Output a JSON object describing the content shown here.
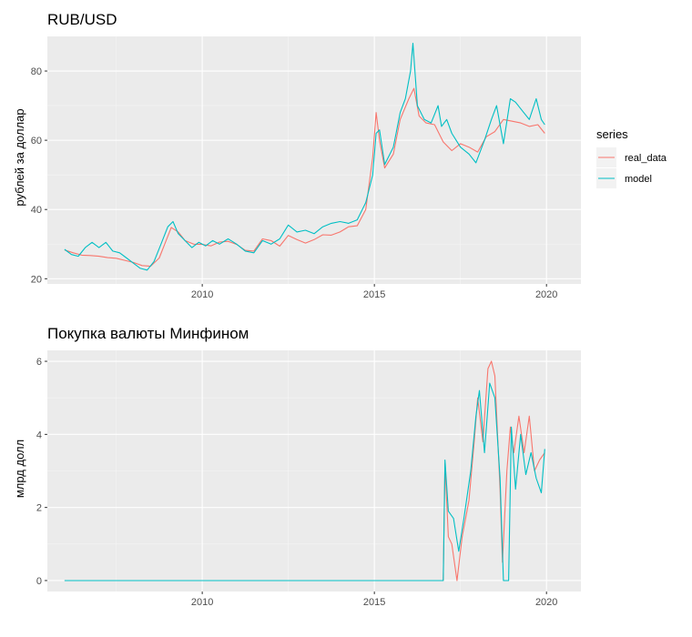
{
  "chart_data": [
    {
      "type": "line",
      "title": "RUB/USD",
      "xlabel": "",
      "ylabel": "рублей за доллар",
      "xlim": [
        2005.5,
        2021.0
      ],
      "ylim": [
        18.5,
        90
      ],
      "x_ticks": [
        2010,
        2015,
        2020
      ],
      "y_ticks": [
        20,
        40,
        60,
        80
      ],
      "grid": true,
      "series": [
        {
          "name": "real_data",
          "color": "#F8766D",
          "points": [
            [
              2006.0,
              28.3
            ],
            [
              2006.25,
              27.5
            ],
            [
              2006.5,
              26.8
            ],
            [
              2006.75,
              26.7
            ],
            [
              2007.0,
              26.5
            ],
            [
              2007.25,
              26.1
            ],
            [
              2007.5,
              25.9
            ],
            [
              2007.75,
              25.3
            ],
            [
              2008.0,
              24.7
            ],
            [
              2008.25,
              23.8
            ],
            [
              2008.5,
              23.6
            ],
            [
              2008.75,
              26.0
            ],
            [
              2008.95,
              31.0
            ],
            [
              2009.1,
              34.8
            ],
            [
              2009.3,
              33.5
            ],
            [
              2009.5,
              31.0
            ],
            [
              2009.75,
              30.0
            ],
            [
              2010.0,
              29.9
            ],
            [
              2010.25,
              29.5
            ],
            [
              2010.5,
              30.6
            ],
            [
              2010.75,
              30.8
            ],
            [
              2011.0,
              29.9
            ],
            [
              2011.25,
              28.2
            ],
            [
              2011.5,
              28.0
            ],
            [
              2011.75,
              31.5
            ],
            [
              2012.0,
              31.0
            ],
            [
              2012.25,
              29.4
            ],
            [
              2012.5,
              32.5
            ],
            [
              2012.75,
              31.3
            ],
            [
              2013.0,
              30.3
            ],
            [
              2013.25,
              31.3
            ],
            [
              2013.5,
              32.7
            ],
            [
              2013.75,
              32.6
            ],
            [
              2014.0,
              33.5
            ],
            [
              2014.25,
              35.0
            ],
            [
              2014.5,
              35.3
            ],
            [
              2014.75,
              40.0
            ],
            [
              2014.95,
              55.0
            ],
            [
              2015.05,
              68.0
            ],
            [
              2015.15,
              60.0
            ],
            [
              2015.3,
              52.0
            ],
            [
              2015.55,
              56.0
            ],
            [
              2015.75,
              66.0
            ],
            [
              2016.0,
              72.0
            ],
            [
              2016.15,
              75.0
            ],
            [
              2016.3,
              67.0
            ],
            [
              2016.5,
              65.0
            ],
            [
              2016.75,
              64.5
            ],
            [
              2017.0,
              59.5
            ],
            [
              2017.25,
              57.0
            ],
            [
              2017.5,
              59.0
            ],
            [
              2017.75,
              58.0
            ],
            [
              2018.0,
              56.6
            ],
            [
              2018.25,
              61.0
            ],
            [
              2018.5,
              62.5
            ],
            [
              2018.75,
              66.0
            ],
            [
              2019.0,
              65.5
            ],
            [
              2019.25,
              65.0
            ],
            [
              2019.5,
              64.0
            ],
            [
              2019.75,
              64.5
            ],
            [
              2019.95,
              62.0
            ]
          ]
        },
        {
          "name": "model",
          "color": "#00BFC4",
          "points": [
            [
              2006.0,
              28.5
            ],
            [
              2006.2,
              27.0
            ],
            [
              2006.4,
              26.5
            ],
            [
              2006.6,
              29.0
            ],
            [
              2006.8,
              30.5
            ],
            [
              2007.0,
              29.0
            ],
            [
              2007.2,
              30.5
            ],
            [
              2007.4,
              28.0
            ],
            [
              2007.6,
              27.5
            ],
            [
              2007.8,
              26.0
            ],
            [
              2008.0,
              24.5
            ],
            [
              2008.2,
              23.0
            ],
            [
              2008.4,
              22.5
            ],
            [
              2008.6,
              25.0
            ],
            [
              2008.8,
              30.0
            ],
            [
              2009.0,
              35.0
            ],
            [
              2009.15,
              36.5
            ],
            [
              2009.3,
              33.0
            ],
            [
              2009.5,
              31.0
            ],
            [
              2009.7,
              29.0
            ],
            [
              2009.9,
              30.5
            ],
            [
              2010.1,
              29.5
            ],
            [
              2010.3,
              31.0
            ],
            [
              2010.5,
              30.0
            ],
            [
              2010.75,
              31.5
            ],
            [
              2011.0,
              30.0
            ],
            [
              2011.25,
              28.0
            ],
            [
              2011.5,
              27.5
            ],
            [
              2011.75,
              31.0
            ],
            [
              2012.0,
              30.0
            ],
            [
              2012.25,
              31.5
            ],
            [
              2012.5,
              35.5
            ],
            [
              2012.75,
              33.5
            ],
            [
              2013.0,
              34.0
            ],
            [
              2013.25,
              33.0
            ],
            [
              2013.5,
              35.0
            ],
            [
              2013.75,
              36.0
            ],
            [
              2014.0,
              36.5
            ],
            [
              2014.25,
              36.0
            ],
            [
              2014.5,
              37.0
            ],
            [
              2014.75,
              42.0
            ],
            [
              2014.95,
              50.0
            ],
            [
              2015.05,
              62.0
            ],
            [
              2015.15,
              63.0
            ],
            [
              2015.3,
              53.0
            ],
            [
              2015.55,
              58.0
            ],
            [
              2015.75,
              68.0
            ],
            [
              2015.9,
              72.0
            ],
            [
              2016.05,
              80.0
            ],
            [
              2016.12,
              88.0
            ],
            [
              2016.25,
              70.0
            ],
            [
              2016.45,
              66.0
            ],
            [
              2016.65,
              65.0
            ],
            [
              2016.85,
              70.0
            ],
            [
              2016.95,
              64.0
            ],
            [
              2017.1,
              66.0
            ],
            [
              2017.25,
              62.0
            ],
            [
              2017.5,
              58.0
            ],
            [
              2017.75,
              56.0
            ],
            [
              2017.95,
              53.5
            ],
            [
              2018.2,
              60.0
            ],
            [
              2018.4,
              66.0
            ],
            [
              2018.55,
              70.0
            ],
            [
              2018.75,
              59.0
            ],
            [
              2018.95,
              72.0
            ],
            [
              2019.1,
              71.0
            ],
            [
              2019.3,
              68.5
            ],
            [
              2019.5,
              66.0
            ],
            [
              2019.7,
              72.0
            ],
            [
              2019.85,
              66.0
            ],
            [
              2019.95,
              64.5
            ]
          ]
        }
      ],
      "legend": {
        "title": "series",
        "position": "right",
        "entries": [
          {
            "label": "real_data",
            "color": "#F8766D"
          },
          {
            "label": "model",
            "color": "#00BFC4"
          }
        ]
      }
    },
    {
      "type": "line",
      "title": "Покупка валюты Минфином",
      "xlabel": "",
      "ylabel": "млрд долл",
      "xlim": [
        2005.5,
        2021.0
      ],
      "ylim": [
        -0.3,
        6.3
      ],
      "x_ticks": [
        2010,
        2015,
        2020
      ],
      "y_ticks": [
        0,
        2,
        4,
        6
      ],
      "grid": true,
      "series": [
        {
          "name": "real_data",
          "color": "#F8766D",
          "points": [
            [
              2006.0,
              0
            ],
            [
              2017.0,
              0
            ],
            [
              2017.05,
              3.2
            ],
            [
              2017.15,
              1.2
            ],
            [
              2017.25,
              1.0
            ],
            [
              2017.4,
              0.0
            ],
            [
              2017.55,
              1.2
            ],
            [
              2017.75,
              2.2
            ],
            [
              2017.9,
              3.8
            ],
            [
              2018.0,
              5.0
            ],
            [
              2018.15,
              3.8
            ],
            [
              2018.3,
              5.8
            ],
            [
              2018.4,
              6.0
            ],
            [
              2018.5,
              5.6
            ],
            [
              2018.65,
              2.5
            ],
            [
              2018.72,
              0.5
            ],
            [
              2018.85,
              3.0
            ],
            [
              2018.95,
              4.2
            ],
            [
              2019.05,
              3.5
            ],
            [
              2019.2,
              4.5
            ],
            [
              2019.35,
              3.5
            ],
            [
              2019.5,
              4.5
            ],
            [
              2019.65,
              3.0
            ],
            [
              2019.8,
              3.3
            ],
            [
              2019.95,
              3.5
            ]
          ]
        },
        {
          "name": "model",
          "color": "#00BFC4",
          "points": [
            [
              2006.0,
              0
            ],
            [
              2017.0,
              0
            ],
            [
              2017.05,
              3.3
            ],
            [
              2017.15,
              1.9
            ],
            [
              2017.3,
              1.7
            ],
            [
              2017.45,
              0.8
            ],
            [
              2017.6,
              1.7
            ],
            [
              2017.8,
              3.0
            ],
            [
              2017.95,
              4.5
            ],
            [
              2018.05,
              5.2
            ],
            [
              2018.2,
              3.5
            ],
            [
              2018.35,
              5.4
            ],
            [
              2018.5,
              5.0
            ],
            [
              2018.65,
              2.8
            ],
            [
              2018.75,
              0.0
            ],
            [
              2018.9,
              0.0
            ],
            [
              2018.98,
              4.2
            ],
            [
              2019.1,
              2.5
            ],
            [
              2019.25,
              4.0
            ],
            [
              2019.4,
              2.9
            ],
            [
              2019.55,
              3.5
            ],
            [
              2019.7,
              2.8
            ],
            [
              2019.85,
              2.4
            ],
            [
              2019.95,
              3.6
            ]
          ]
        }
      ]
    }
  ]
}
